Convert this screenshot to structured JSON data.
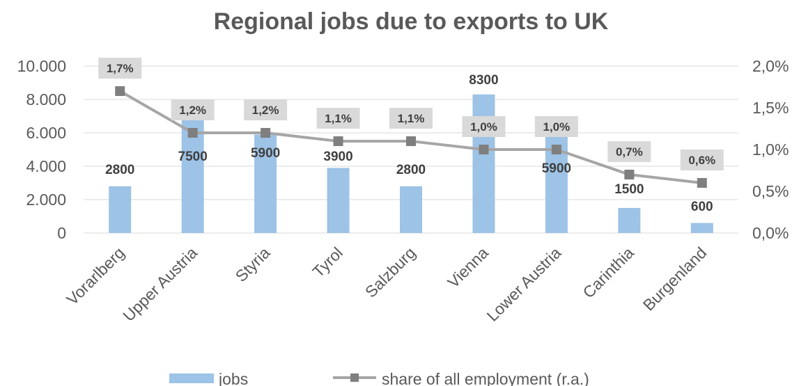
{
  "chart_data": {
    "type": "bar",
    "title": "Regional jobs due to exports to UK",
    "categories": [
      "Vorarlberg",
      "Upper Austria",
      "Styria",
      "Tyrol",
      "Salzburg",
      "Vienna",
      "Lower Austria",
      "Carinthia",
      "Burgenland"
    ],
    "series": [
      {
        "name": "jobs",
        "type": "bar",
        "axis": "left",
        "color": "#9dc3e6",
        "values": [
          2800,
          7500,
          5900,
          3900,
          2800,
          8300,
          5900,
          1500,
          600
        ],
        "labels": [
          "2800",
          "7500",
          "5900",
          "3900",
          "2800",
          "8300",
          "5900",
          "1500",
          "600"
        ]
      },
      {
        "name": "share of all employment (r.a.)",
        "type": "line",
        "axis": "right",
        "color": "#a6a6a6",
        "marker_color": "#7f7f7f",
        "values": [
          1.7,
          1.2,
          1.2,
          1.1,
          1.1,
          1.0,
          1.0,
          0.7,
          0.6
        ],
        "labels": [
          "1,7%",
          "1,2%",
          "1,2%",
          "1,1%",
          "1,1%",
          "1,0%",
          "1,0%",
          "0,7%",
          "0,6%"
        ]
      }
    ],
    "y_left": {
      "ylim": [
        0,
        10000
      ],
      "ticks": [
        0,
        2000,
        4000,
        6000,
        8000,
        10000
      ],
      "tick_labels": [
        "0",
        "2.000",
        "4.000",
        "6.000",
        "8.000",
        "10.000"
      ]
    },
    "y_right": {
      "ylim": [
        0,
        2.0
      ],
      "ticks": [
        0,
        0.5,
        1.0,
        1.5,
        2.0
      ],
      "tick_labels": [
        "0,0%",
        "0,5%",
        "1,0%",
        "1,5%",
        "2,0%"
      ]
    },
    "grid": true,
    "legend": "bottom"
  }
}
